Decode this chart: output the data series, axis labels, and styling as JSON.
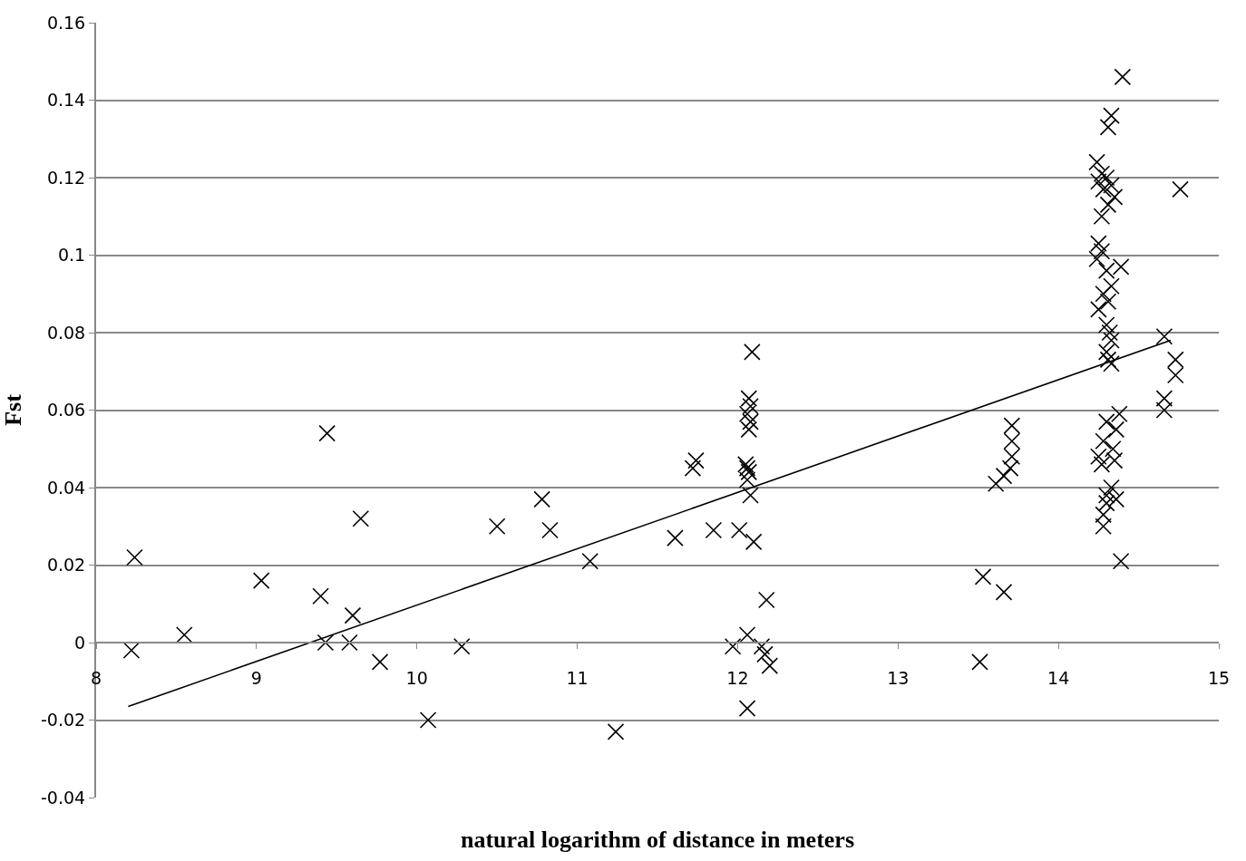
{
  "chart_data": {
    "type": "scatter",
    "xlabel": "natural logarithm of distance in meters",
    "ylabel": "Fst",
    "xlim": [
      8,
      15
    ],
    "ylim": [
      -0.04,
      0.16
    ],
    "xticks": [
      8,
      9,
      10,
      11,
      12,
      13,
      14,
      15
    ],
    "yticks": [
      -0.04,
      -0.02,
      0,
      0.02,
      0.04,
      0.06,
      0.08,
      0.1,
      0.12,
      0.14,
      0.16
    ],
    "grid": "y",
    "marker": "cross",
    "legend": false,
    "series": [
      {
        "color": "#000000",
        "x": [
          8.22,
          8.24,
          8.55,
          9.03,
          9.4,
          9.44,
          9.43,
          9.6,
          9.58,
          9.65,
          9.77,
          10.07,
          10.28,
          10.5,
          10.78,
          10.83,
          11.08,
          11.24,
          11.61,
          11.74,
          11.72,
          11.85,
          12.01,
          11.97,
          12.09,
          12.07,
          12.08,
          12.06,
          12.08,
          12.07,
          12.05,
          12.06,
          12.07,
          12.06,
          12.08,
          12.1,
          12.18,
          12.06,
          12.15,
          12.17,
          12.2,
          12.06,
          13.51,
          13.53,
          13.66,
          13.61,
          13.66,
          13.7,
          13.71,
          13.71,
          13.71,
          14.4,
          14.33,
          14.31,
          14.24,
          14.27,
          14.3,
          14.25,
          14.33,
          14.28,
          14.35,
          14.31,
          14.27,
          14.25,
          14.27,
          14.24,
          14.39,
          14.3,
          14.33,
          14.28,
          14.31,
          14.25,
          14.3,
          14.32,
          14.33,
          14.3,
          14.31,
          14.33,
          14.38,
          14.3,
          14.36,
          14.28,
          14.34,
          14.25,
          14.35,
          14.27,
          14.33,
          14.3,
          14.36,
          14.3,
          14.28,
          14.28,
          14.39,
          14.76,
          14.66,
          14.73,
          14.73,
          14.66,
          14.66
        ],
        "values": [
          -0.002,
          0.022,
          0.002,
          0.016,
          0.012,
          0.054,
          0.0,
          0.007,
          0.0,
          0.032,
          -0.005,
          -0.02,
          -0.001,
          0.03,
          0.037,
          0.029,
          0.021,
          -0.023,
          0.027,
          0.047,
          0.045,
          0.029,
          0.029,
          -0.001,
          0.075,
          0.063,
          0.061,
          0.059,
          0.057,
          0.055,
          0.046,
          0.045,
          0.044,
          0.042,
          0.038,
          0.026,
          0.011,
          0.002,
          -0.001,
          -0.003,
          -0.006,
          -0.017,
          -0.005,
          0.017,
          0.013,
          0.041,
          0.043,
          0.045,
          0.048,
          0.052,
          0.056,
          0.146,
          0.136,
          0.133,
          0.124,
          0.121,
          0.12,
          0.119,
          0.118,
          0.117,
          0.115,
          0.113,
          0.11,
          0.103,
          0.101,
          0.099,
          0.097,
          0.096,
          0.092,
          0.09,
          0.088,
          0.086,
          0.082,
          0.08,
          0.078,
          0.075,
          0.073,
          0.072,
          0.059,
          0.057,
          0.055,
          0.052,
          0.05,
          0.048,
          0.047,
          0.046,
          0.04,
          0.038,
          0.037,
          0.036,
          0.033,
          0.03,
          0.021,
          0.117,
          0.079,
          0.073,
          0.069,
          0.063,
          0.06
        ]
      },
      {
        "type": "line",
        "color": "#000000",
        "marker": "none",
        "x": [
          8.2,
          14.7
        ],
        "values": [
          -0.0165,
          0.078
        ]
      }
    ]
  }
}
